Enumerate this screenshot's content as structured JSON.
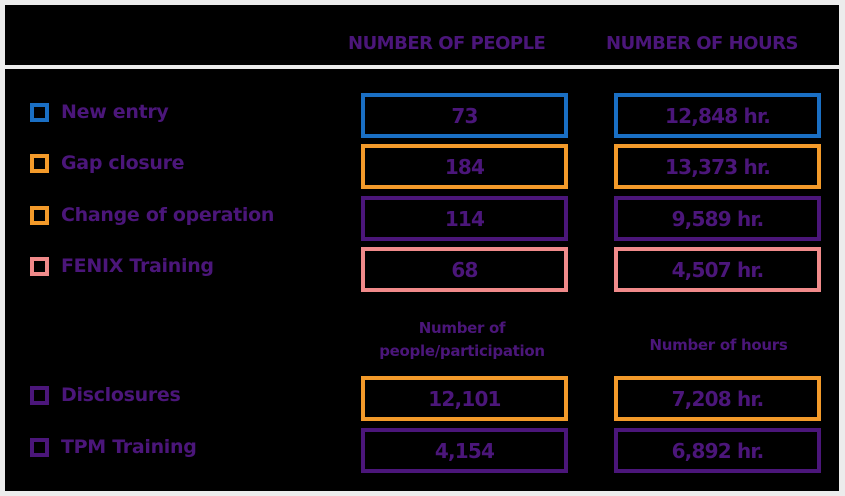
{
  "header": {
    "col_people": "NUMBER OF PEOPLE",
    "col_hours": "NUMBER OF HOURS"
  },
  "rows": [
    {
      "label": "New entry",
      "people": "73",
      "hours": "12,848 hr.",
      "color": "#1a6fc4"
    },
    {
      "label": "Gap closure",
      "people": "184",
      "hours": "13,373 hr.",
      "color": "#f39a2a"
    },
    {
      "label": "Change of operation",
      "people": "114",
      "hours": "9,589 hr.",
      "color": "#4b167a"
    },
    {
      "label": "FENIX Training",
      "people": "68",
      "hours": "4,507 hr.",
      "color": "#f08a8a"
    }
  ],
  "subheader": {
    "col_people": "Number of people/participation",
    "col_hours": "Number of hours"
  },
  "rows2": [
    {
      "label": "Disclosures",
      "people": "12,101",
      "hours": "7,208 hr.",
      "color": "#f39a2a"
    },
    {
      "label": "TPM Training",
      "people": "4,154",
      "hours": "6,892 hr.",
      "color": "#4b167a"
    }
  ],
  "colors": {
    "text": "#4b167a",
    "swatch": "#f39a2a",
    "swatch_alt": "#4b167a"
  }
}
